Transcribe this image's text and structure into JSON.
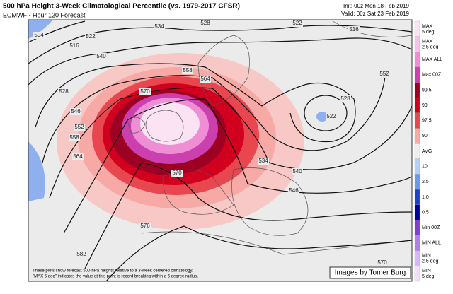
{
  "header": {
    "title": "500 hPa Height 3-Week Climatological Percentile (vs. 1979-2017 CFSR)",
    "subtitle": "ECMWF - Hour 120 Forecast",
    "init": "Init: 00z Mon 18 Feb 2019",
    "valid": "Valid: 00z Sat 23 Feb 2019"
  },
  "legend": [
    {
      "label": "MAX 5 deg",
      "color": "#fbe3f3"
    },
    {
      "label": "MAX 2.5 deg",
      "color": "#f6c3e8"
    },
    {
      "label": "MAX ALL",
      "color": "#ee8fd6"
    },
    {
      "label": "Max 00Z",
      "color": "#cc3fae"
    },
    {
      "label": "99.5",
      "color": "#9c0022"
    },
    {
      "label": "99",
      "color": "#d2001f"
    },
    {
      "label": "97.5",
      "color": "#e8474f"
    },
    {
      "label": "90",
      "color": "#f7a9a6"
    },
    {
      "label": "AVG",
      "color": "#eeeeee"
    },
    {
      "label": "10",
      "color": "#b6cff7"
    },
    {
      "label": "2.5",
      "color": "#6f97ef"
    },
    {
      "label": "1.0",
      "color": "#1f3fce"
    },
    {
      "label": "0.5",
      "color": "#00009e"
    },
    {
      "label": "Min 00Z",
      "color": "#7f3fcf"
    },
    {
      "label": "MIN ALL",
      "color": "#ae7fef"
    },
    {
      "label": "MIN 2.5 deg",
      "color": "#d6b7f7"
    },
    {
      "label": "MIN 5 deg",
      "color": "#efdffb"
    }
  ],
  "contour_labels": [
    "504",
    "516",
    "522",
    "534",
    "528",
    "522",
    "516",
    "540",
    "528",
    "546",
    "552",
    "558",
    "564",
    "558",
    "564",
    "570",
    "522",
    "528",
    "552",
    "534",
    "540",
    "546",
    "570",
    "576",
    "582",
    "570"
  ],
  "footnote": [
    "These plots show forecast 500-hPa heights relative to a 3-week centered climatology.",
    "\"MAX 5 deg\" indicates the value at this point is record breaking within a 5 degree radius."
  ],
  "credit": "Images by Tomer Burg"
}
